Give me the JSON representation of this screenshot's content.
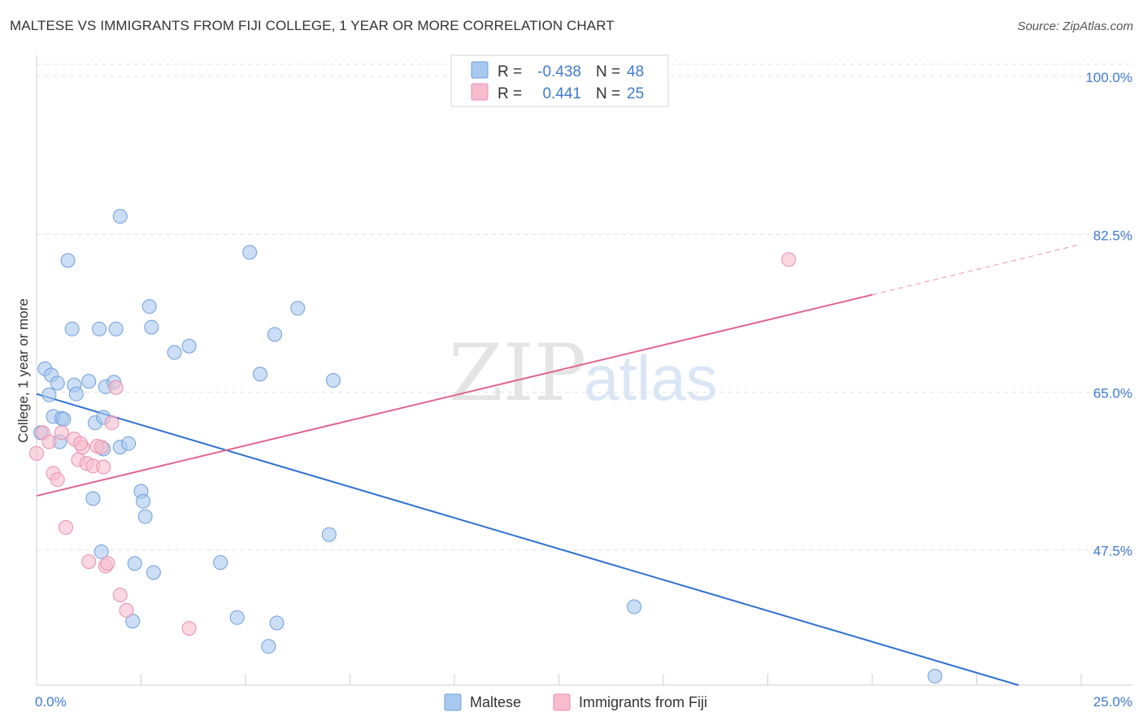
{
  "title": "MALTESE VS IMMIGRANTS FROM FIJI COLLEGE, 1 YEAR OR MORE CORRELATION CHART",
  "source": "Source: ZipAtlas.com",
  "watermark": {
    "zip": "ZIP",
    "atlas": "atlas"
  },
  "chart_data": {
    "type": "scatter",
    "ylabel": "College, 1 year or more",
    "xlim": [
      0,
      25
    ],
    "ylim": [
      32.5,
      102
    ],
    "x_tick_labels": [
      "0.0%",
      "25.0%"
    ],
    "x_tick_values": [
      0,
      25
    ],
    "y_ticks": [
      {
        "value": 100.0,
        "label": "100.0%"
      },
      {
        "value": 82.5,
        "label": "82.5%"
      },
      {
        "value": 65.0,
        "label": "65.0%"
      },
      {
        "value": 47.5,
        "label": "47.5%"
      }
    ],
    "legend_top": [
      {
        "r_label": "R =",
        "r": "-0.438",
        "n_label": "N =",
        "n": "48"
      },
      {
        "r_label": "R =",
        "r": "0.441",
        "n_label": "N =",
        "n": "25"
      }
    ],
    "series": [
      {
        "name": "Maltese",
        "color": "#a9c8ef",
        "stroke": "#6f9fdc",
        "line_color": "#2f72d1",
        "trend": {
          "x0": 0.0,
          "y0": 64.8,
          "x1": 23.5,
          "y1": 32.5
        },
        "points": [
          [
            0.1,
            60.5
          ],
          [
            0.2,
            67.6
          ],
          [
            0.3,
            64.7
          ],
          [
            0.35,
            66.9
          ],
          [
            0.4,
            62.3
          ],
          [
            0.5,
            66.0
          ],
          [
            0.55,
            59.5
          ],
          [
            0.6,
            62.1
          ],
          [
            0.65,
            62.0
          ],
          [
            0.75,
            79.6
          ],
          [
            0.85,
            72.0
          ],
          [
            0.9,
            65.8
          ],
          [
            0.95,
            64.8
          ],
          [
            1.25,
            66.2
          ],
          [
            1.35,
            53.2
          ],
          [
            1.4,
            61.6
          ],
          [
            1.5,
            72.0
          ],
          [
            1.55,
            47.3
          ],
          [
            1.6,
            62.2
          ],
          [
            1.6,
            58.7
          ],
          [
            1.65,
            65.6
          ],
          [
            1.85,
            66.1
          ],
          [
            1.9,
            72.0
          ],
          [
            2.0,
            84.5
          ],
          [
            2.0,
            58.9
          ],
          [
            2.2,
            59.3
          ],
          [
            2.3,
            39.6
          ],
          [
            2.35,
            46.0
          ],
          [
            2.5,
            54.0
          ],
          [
            2.55,
            52.9
          ],
          [
            2.6,
            51.2
          ],
          [
            2.7,
            74.5
          ],
          [
            2.75,
            72.2
          ],
          [
            2.8,
            45.0
          ],
          [
            3.3,
            69.4
          ],
          [
            3.65,
            70.1
          ],
          [
            4.4,
            46.1
          ],
          [
            4.8,
            40.0
          ],
          [
            5.1,
            80.5
          ],
          [
            5.35,
            67.0
          ],
          [
            5.55,
            36.8
          ],
          [
            5.7,
            71.4
          ],
          [
            5.75,
            39.4
          ],
          [
            6.25,
            74.3
          ],
          [
            7.0,
            49.2
          ],
          [
            7.1,
            66.3
          ],
          [
            14.3,
            41.2
          ],
          [
            21.5,
            33.5
          ]
        ]
      },
      {
        "name": "Immigrants from Fiji",
        "color": "#f7bccd",
        "stroke": "#e98fab",
        "line_color": "#e0668e",
        "trend": {
          "x0": 0.0,
          "y0": 53.5,
          "x1": 20.0,
          "y1": 75.8
        },
        "trend_dashed_to": {
          "x": 25.0,
          "y": 81.4
        },
        "points": [
          [
            0.0,
            58.2
          ],
          [
            0.15,
            60.5
          ],
          [
            0.3,
            59.5
          ],
          [
            0.4,
            56.0
          ],
          [
            0.5,
            55.3
          ],
          [
            0.6,
            60.5
          ],
          [
            0.7,
            50.0
          ],
          [
            0.9,
            59.8
          ],
          [
            1.0,
            57.5
          ],
          [
            1.1,
            58.9
          ],
          [
            1.2,
            57.1
          ],
          [
            1.25,
            46.2
          ],
          [
            1.35,
            56.8
          ],
          [
            1.45,
            59.0
          ],
          [
            1.55,
            58.9
          ],
          [
            1.6,
            56.7
          ],
          [
            1.65,
            45.7
          ],
          [
            1.7,
            46.0
          ],
          [
            1.8,
            61.6
          ],
          [
            1.9,
            65.5
          ],
          [
            2.0,
            42.5
          ],
          [
            2.15,
            40.8
          ],
          [
            3.65,
            38.8
          ],
          [
            18.0,
            79.7
          ],
          [
            1.05,
            59.3
          ]
        ]
      }
    ]
  }
}
